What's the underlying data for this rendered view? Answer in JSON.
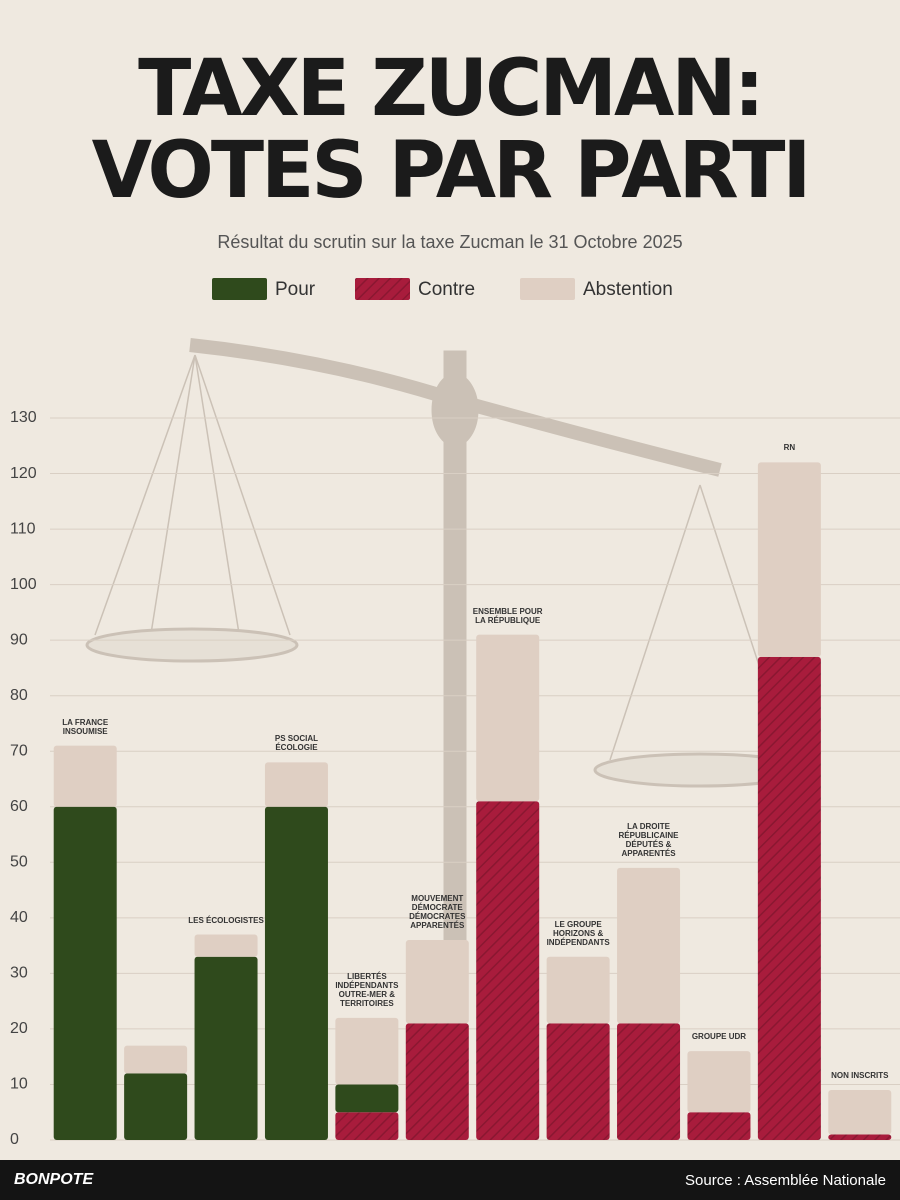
{
  "chart_data": {
    "type": "stacked_bar",
    "title": "TAXE ZUCMAN:",
    "title_line2": "VOTES PAR PARTI",
    "subtitle": "Résultat du scrutin sur la taxe Zucman le 31 Octobre 2025",
    "categories": [
      "LA FRANCE INSOUMISE",
      null,
      "LES ÉCOLOGISTES",
      "PS SOCIAL ÉCOLOGIE",
      "LIBERTÉS INDÉPENDANTS OUTRE-MER & TERRITOIRES",
      "MOUVEMENT DÉMOCRATE DÉMOCRATES APPARENTÉS",
      "ENSEMBLE POUR LA RÉPUBLIQUE",
      "LE GROUPE HORIZONS & INDÉPENDANTS",
      "LA DROITE RÉPUBLICAINE DÉPUTÉS & APPARENTÉS",
      "groupe udr",
      "RN",
      "NON INSCRITS"
    ],
    "series": [
      {
        "name": "Pour",
        "color": "#2f4a1c",
        "values": [
          60,
          12,
          33,
          60,
          5,
          0,
          0,
          0,
          0,
          0,
          0,
          0
        ]
      },
      {
        "name": "Contre",
        "color": "#a81c3c",
        "values": [
          0,
          0,
          0,
          0,
          5,
          21,
          61,
          21,
          21,
          5,
          87,
          1
        ]
      },
      {
        "name": "Abstention",
        "color": "#dfcfc3",
        "values": [
          11,
          5,
          4,
          8,
          12,
          15,
          30,
          12,
          28,
          11,
          35,
          8
        ]
      }
    ],
    "ylim": [
      0,
      130
    ],
    "yticks": [
      0,
      10,
      20,
      30,
      40,
      50,
      60,
      70,
      80,
      90,
      100,
      110,
      120,
      130
    ],
    "grid": true,
    "brand": "BONPOTE",
    "source": "Source : Assemblée Nationale"
  }
}
